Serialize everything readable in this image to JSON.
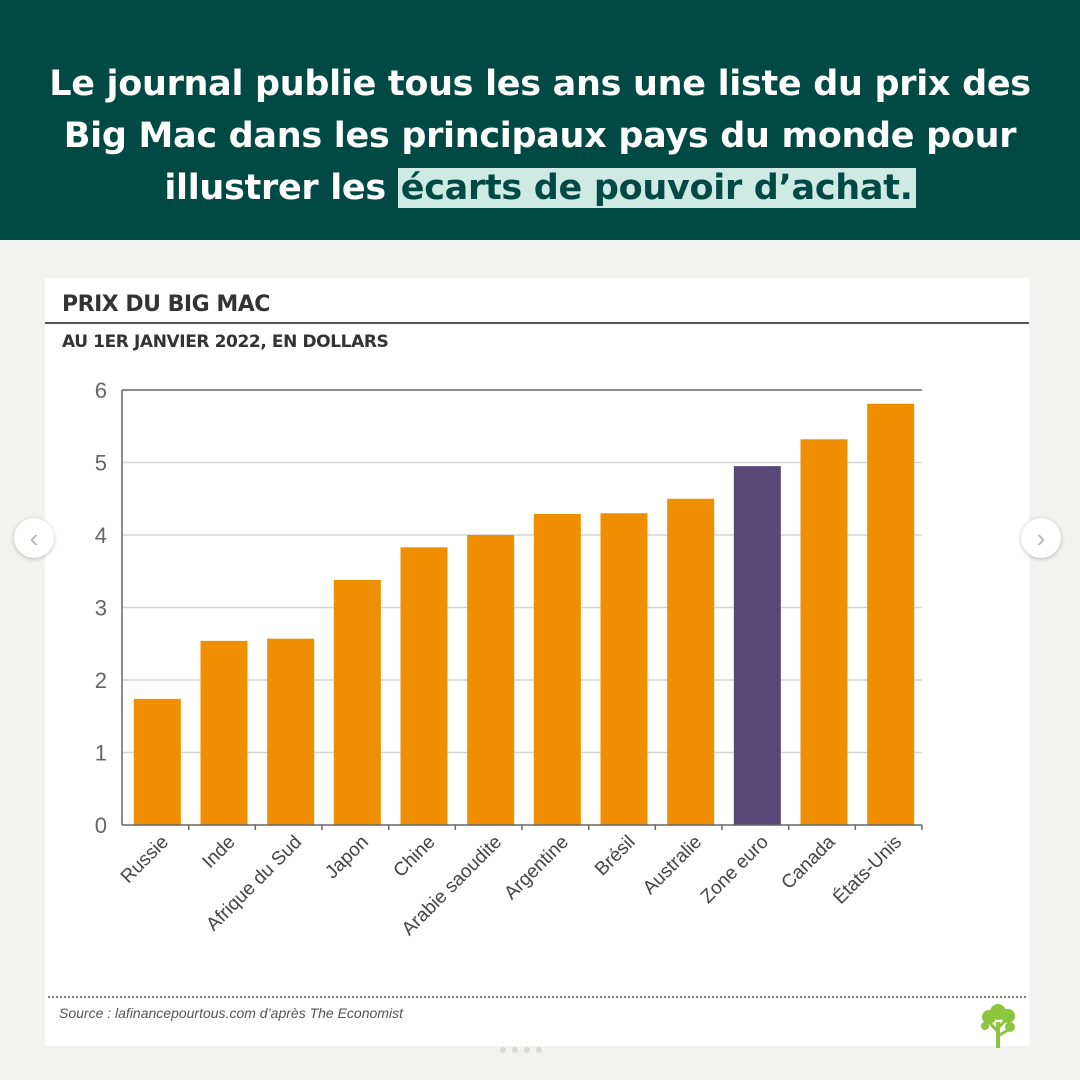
{
  "banner": {
    "text_before": "Le journal publie tous les ans une liste du prix des Big Mac dans les principaux pays du monde pour illustrer les ",
    "text_highlight": "écarts de pouvoir d’achat."
  },
  "nav": {
    "prev_icon": "‹",
    "next_icon": "›"
  },
  "colors": {
    "banner": "#014945",
    "highlight": "#cfe9e3",
    "bar": "#ef8f00",
    "bar_highlight": "#574878"
  },
  "chart_data": {
    "type": "bar",
    "title": "PRIX DU BIG MAC",
    "subtitle": "AU 1ER JANVIER 2022, EN DOLLARS",
    "categories": [
      "Russie",
      "Inde",
      "Afrique du Sud",
      "Japon",
      "Chine",
      "Arabie saoudite",
      "Argentine",
      "Brésil",
      "Australie",
      "Zone euro",
      "Canada",
      "États-Unis"
    ],
    "values": [
      1.74,
      2.54,
      2.57,
      3.38,
      3.83,
      4.0,
      4.29,
      4.3,
      4.5,
      4.95,
      5.32,
      5.81
    ],
    "highlighted_category": "Zone euro",
    "ylim": [
      0,
      6
    ],
    "yticks": [
      0,
      1,
      2,
      3,
      4,
      5,
      6
    ],
    "grid": true,
    "xlabel": "",
    "ylabel": ""
  },
  "source": "Source : lafinancepourtous.com d’après The Economist",
  "logo_icon": "tree-icon"
}
